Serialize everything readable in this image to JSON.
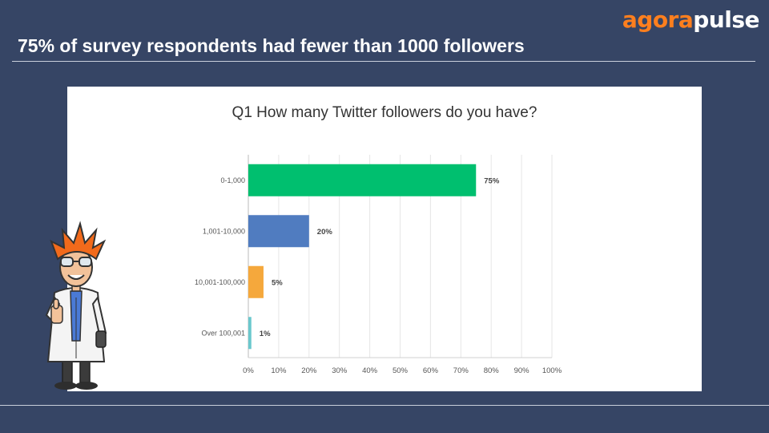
{
  "brand": {
    "part1": "agora",
    "part2": "pulse"
  },
  "slide": {
    "title": "75% of survey respondents had fewer than 1000 followers"
  },
  "colors": {
    "background": "#364565",
    "brand_orange": "#ff7f1e",
    "bar_green": "#00bf6f",
    "bar_blue": "#507cc0",
    "bar_orange": "#f5a83c",
    "bar_teal": "#6bc8cd"
  },
  "chart_data": {
    "type": "bar",
    "orientation": "horizontal",
    "title": "Q1 How many Twitter followers do you have?",
    "categories": [
      "0-1,000",
      "1,001-10,000",
      "10,001-100,000",
      "Over 100,001"
    ],
    "values": [
      75,
      20,
      5,
      1
    ],
    "value_labels": [
      "75%",
      "20%",
      "5%",
      "1%"
    ],
    "bar_colors": [
      "#00bf6f",
      "#507cc0",
      "#f5a83c",
      "#6bc8cd"
    ],
    "xlim": [
      0,
      100
    ],
    "xticks": [
      "0%",
      "10%",
      "20%",
      "30%",
      "40%",
      "50%",
      "60%",
      "70%",
      "80%",
      "90%",
      "100%"
    ],
    "grid": true,
    "legend": "none"
  },
  "illustration": {
    "icon": "scientist-thumbs-up-icon"
  }
}
